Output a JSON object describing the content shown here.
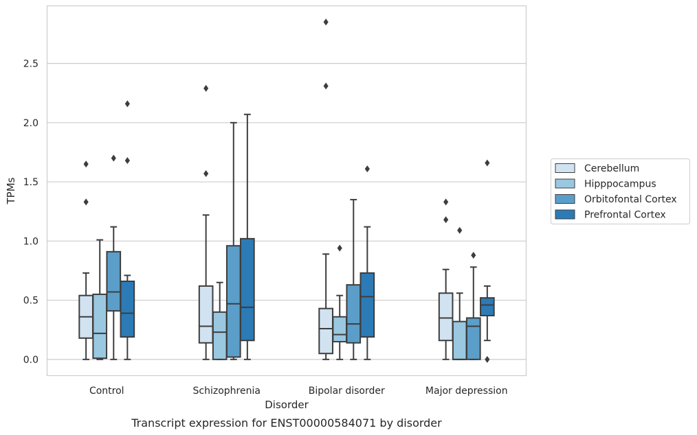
{
  "chart_data": {
    "type": "box",
    "caption": "Transcript expression for ENST00000584071 by disorder",
    "xlabel": "Disorder",
    "ylabel": "TPMs",
    "ylim": [
      -0.14,
      2.99
    ],
    "yticks": [
      0.0,
      0.5,
      1.0,
      1.5,
      2.0,
      2.5
    ],
    "ytick_labels": [
      "0.0",
      "0.5",
      "1.0",
      "1.5",
      "2.0",
      "2.5"
    ],
    "grid": "horizontal",
    "legend_position": "right",
    "categories": [
      "Control",
      "Schizophrenia",
      "Bipolar disorder",
      "Major depression"
    ],
    "series": [
      {
        "name": "Cerebellum",
        "color": "#d1e2f1",
        "boxes": [
          {
            "whisker_low": 0.0,
            "q1": 0.18,
            "median": 0.36,
            "q3": 0.54,
            "whisker_high": 0.73,
            "outliers": [
              1.33,
              1.65
            ]
          },
          {
            "whisker_low": 0.0,
            "q1": 0.14,
            "median": 0.28,
            "q3": 0.62,
            "whisker_high": 1.22,
            "outliers": [
              1.57,
              2.29
            ]
          },
          {
            "whisker_low": 0.0,
            "q1": 0.05,
            "median": 0.26,
            "q3": 0.43,
            "whisker_high": 0.89,
            "outliers": [
              2.31,
              2.85
            ]
          },
          {
            "whisker_low": 0.0,
            "q1": 0.16,
            "median": 0.35,
            "q3": 0.56,
            "whisker_high": 0.76,
            "outliers": [
              1.18,
              1.33
            ]
          }
        ]
      },
      {
        "name": "Hipppocampus",
        "color": "#9ac8e0",
        "boxes": [
          {
            "whisker_low": 0.0,
            "q1": 0.01,
            "median": 0.22,
            "q3": 0.55,
            "whisker_high": 1.01,
            "outliers": []
          },
          {
            "whisker_low": 0.0,
            "q1": 0.0,
            "median": 0.23,
            "q3": 0.4,
            "whisker_high": 0.65,
            "outliers": []
          },
          {
            "whisker_low": 0.0,
            "q1": 0.15,
            "median": 0.21,
            "q3": 0.36,
            "whisker_high": 0.54,
            "outliers": [
              0.94
            ]
          },
          {
            "whisker_low": 0.0,
            "q1": 0.0,
            "median": 0.0,
            "q3": 0.32,
            "whisker_high": 0.56,
            "outliers": [
              1.09
            ]
          }
        ]
      },
      {
        "name": "Orbitofontal Cortex",
        "color": "#5b9ec9",
        "boxes": [
          {
            "whisker_low": 0.0,
            "q1": 0.41,
            "median": 0.57,
            "q3": 0.91,
            "whisker_high": 1.12,
            "outliers": [
              1.7
            ]
          },
          {
            "whisker_low": 0.0,
            "q1": 0.02,
            "median": 0.47,
            "q3": 0.96,
            "whisker_high": 2.0,
            "outliers": []
          },
          {
            "whisker_low": 0.0,
            "q1": 0.14,
            "median": 0.3,
            "q3": 0.63,
            "whisker_high": 1.35,
            "outliers": []
          },
          {
            "whisker_low": 0.0,
            "q1": 0.0,
            "median": 0.28,
            "q3": 0.35,
            "whisker_high": 0.78,
            "outliers": [
              0.88
            ]
          }
        ]
      },
      {
        "name": "Prefrontal Cortex",
        "color": "#2c7bb6",
        "boxes": [
          {
            "whisker_low": 0.0,
            "q1": 0.19,
            "median": 0.39,
            "q3": 0.66,
            "whisker_high": 0.71,
            "outliers": [
              1.68,
              2.16
            ]
          },
          {
            "whisker_low": 0.0,
            "q1": 0.16,
            "median": 0.44,
            "q3": 1.02,
            "whisker_high": 2.07,
            "outliers": []
          },
          {
            "whisker_low": 0.0,
            "q1": 0.19,
            "median": 0.53,
            "q3": 0.73,
            "whisker_high": 1.12,
            "outliers": [
              1.61
            ]
          },
          {
            "whisker_low": 0.16,
            "q1": 0.37,
            "median": 0.46,
            "q3": 0.52,
            "whisker_high": 0.62,
            "outliers": [
              0.0,
              1.66
            ]
          }
        ]
      }
    ]
  }
}
